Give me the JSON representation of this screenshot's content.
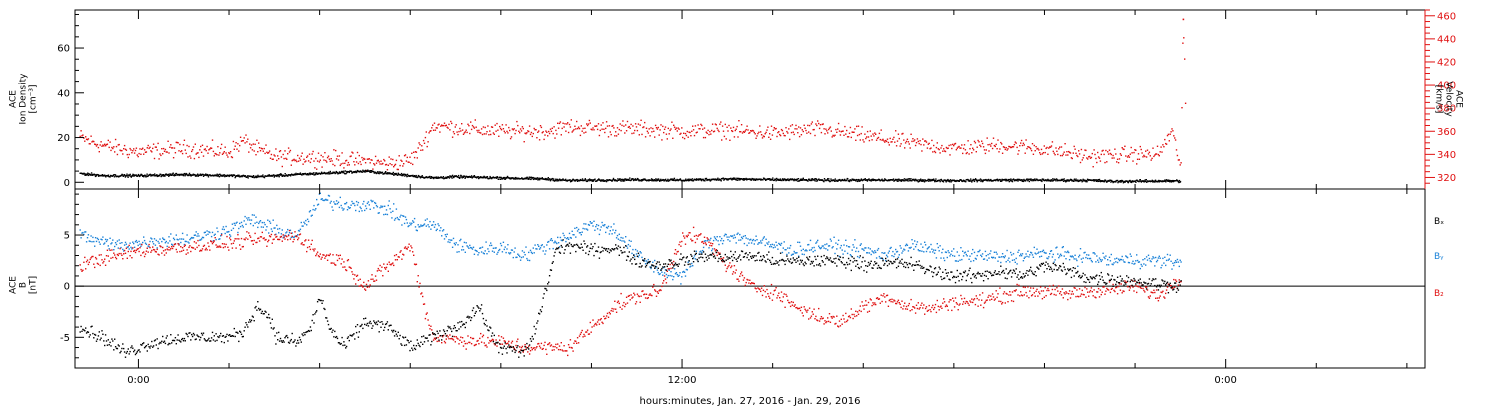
{
  "xaxis": {
    "label": "hours:minutes, Jan. 27, 2016 - Jan. 29, 2016",
    "range_hours": [
      -1.4,
      28.4
    ],
    "major_ticks": [
      {
        "hour": 0,
        "label": "0:00"
      },
      {
        "hour": 12,
        "label": "12:00"
      },
      {
        "hour": 24,
        "label": "0:00"
      }
    ]
  },
  "colors": {
    "density": "#000000",
    "velocity": "#e01010",
    "bx": "#000000",
    "by": "#1a82d8",
    "bz": "#e01010"
  },
  "chart_data": [
    {
      "type": "scatter",
      "panel": "top",
      "ylabel_left": [
        "ACE",
        "Ion Density",
        "[cm⁻³]"
      ],
      "ylabel_right": [
        "ACE",
        "Velocity",
        "[km/s]"
      ],
      "left_axis": {
        "range": [
          -3,
          77
        ],
        "ticks": [
          0,
          20,
          40,
          60
        ],
        "tick_labels": [
          "0",
          "20",
          "40",
          "60"
        ]
      },
      "right_axis": {
        "range": [
          310,
          465
        ],
        "ticks": [
          320,
          340,
          360,
          380,
          400,
          420,
          440,
          460
        ],
        "tick_labels": [
          "320",
          "340",
          "360",
          "380",
          "400",
          "420",
          "440",
          "460"
        ]
      },
      "series": [
        {
          "key": "density",
          "axis": "left",
          "points": [
            [
              -1.3,
              4
            ],
            [
              -0.8,
              3
            ],
            [
              0,
              3
            ],
            [
              1,
              3.5
            ],
            [
              2,
              3
            ],
            [
              2.5,
              2.5
            ],
            [
              3,
              3
            ],
            [
              4,
              4
            ],
            [
              5,
              5
            ],
            [
              5.5,
              4
            ],
            [
              6,
              3
            ],
            [
              6.5,
              2
            ],
            [
              7,
              2.5
            ],
            [
              8,
              2
            ],
            [
              9,
              1.5
            ],
            [
              9.5,
              0.8
            ],
            [
              10,
              1
            ],
            [
              11,
              1.2
            ],
            [
              12,
              1
            ],
            [
              13,
              1.5
            ],
            [
              14,
              1.2
            ],
            [
              15,
              1
            ],
            [
              16,
              1
            ],
            [
              17,
              1
            ],
            [
              18,
              0.8
            ],
            [
              19,
              1
            ],
            [
              20,
              1
            ],
            [
              21,
              0.9
            ],
            [
              21.5,
              0.4
            ],
            [
              22,
              0.5
            ],
            [
              22.5,
              0.6
            ],
            [
              23,
              0.6
            ]
          ]
        },
        {
          "key": "velocity",
          "axis": "right",
          "points": [
            [
              -1.3,
              355
            ],
            [
              -1,
              350
            ],
            [
              -0.5,
              345
            ],
            [
              0,
              342
            ],
            [
              1,
              345
            ],
            [
              2,
              342
            ],
            [
              2.3,
              352
            ],
            [
              2.6,
              344
            ],
            [
              3,
              338
            ],
            [
              4,
              337
            ],
            [
              5,
              334
            ],
            [
              5.5,
              332
            ],
            [
              6,
              335
            ],
            [
              6.2,
              345
            ],
            [
              6.5,
              365
            ],
            [
              7,
              363
            ],
            [
              8,
              360
            ],
            [
              9,
              360
            ],
            [
              9.5,
              364
            ],
            [
              10,
              363
            ],
            [
              11,
              362
            ],
            [
              12,
              360
            ],
            [
              13,
              361
            ],
            [
              14,
              358
            ],
            [
              15,
              362
            ],
            [
              16,
              356
            ],
            [
              17,
              350
            ],
            [
              18,
              345
            ],
            [
              19,
              348
            ],
            [
              20,
              345
            ],
            [
              21,
              338
            ],
            [
              22,
              340
            ],
            [
              22.5,
              340
            ],
            [
              22.8,
              360
            ],
            [
              23,
              330
            ],
            [
              23.05,
              457
            ],
            [
              23.1,
              385
            ]
          ]
        }
      ]
    },
    {
      "type": "scatter",
      "panel": "bottom",
      "ylabel_left": [
        "ACE",
        "B",
        "[nT]"
      ],
      "axis": {
        "range": [
          -8,
          9.5
        ],
        "ticks": [
          -5,
          0,
          5
        ],
        "tick_labels": [
          "-5",
          "0",
          "5"
        ]
      },
      "legend": [
        "Bₓ",
        "Bᵧ",
        "B₂"
      ],
      "series": [
        {
          "key": "bx",
          "name": "Bₓ",
          "points": [
            [
              -1.3,
              -4
            ],
            [
              -0.8,
              -5
            ],
            [
              -0.3,
              -6.5
            ],
            [
              0.3,
              -5.5
            ],
            [
              1,
              -5
            ],
            [
              2,
              -5
            ],
            [
              2.3,
              -4.5
            ],
            [
              2.6,
              -2
            ],
            [
              2.9,
              -3
            ],
            [
              3,
              -5
            ],
            [
              3.5,
              -5.5
            ],
            [
              3.8,
              -4
            ],
            [
              4,
              -1
            ],
            [
              4.2,
              -4
            ],
            [
              4.5,
              -6
            ],
            [
              5,
              -3.5
            ],
            [
              5.5,
              -4
            ],
            [
              6,
              -6
            ],
            [
              6.5,
              -5
            ],
            [
              7,
              -4
            ],
            [
              7.3,
              -3
            ],
            [
              7.5,
              -2
            ],
            [
              7.8,
              -5
            ],
            [
              8,
              -6
            ],
            [
              8.5,
              -6.5
            ],
            [
              8.7,
              -5
            ],
            [
              9,
              0
            ],
            [
              9.2,
              3.5
            ],
            [
              9.5,
              4
            ],
            [
              10,
              3.5
            ],
            [
              10.5,
              3.8
            ],
            [
              11,
              2.5
            ],
            [
              11.5,
              2
            ],
            [
              12,
              2.5
            ],
            [
              12.5,
              3
            ],
            [
              13,
              2.8
            ],
            [
              13.5,
              3
            ],
            [
              14,
              2.5
            ],
            [
              14.5,
              2.4
            ],
            [
              15,
              2.5
            ],
            [
              15.5,
              2.5
            ],
            [
              16,
              2.2
            ],
            [
              16.5,
              2.2
            ],
            [
              17,
              2.2
            ],
            [
              17.5,
              1.5
            ],
            [
              18,
              1
            ],
            [
              18.5,
              1
            ],
            [
              19,
              1.5
            ],
            [
              19.5,
              1
            ],
            [
              20,
              2
            ],
            [
              20.5,
              1.5
            ],
            [
              21,
              0.8
            ],
            [
              21.5,
              0.7
            ],
            [
              22,
              0.5
            ],
            [
              22.5,
              0.2
            ],
            [
              23,
              0.1
            ]
          ]
        },
        {
          "key": "by",
          "name": "Bᵧ",
          "points": [
            [
              -1.3,
              5
            ],
            [
              -1,
              4.5
            ],
            [
              -0.5,
              4
            ],
            [
              0,
              4.2
            ],
            [
              0.5,
              4.5
            ],
            [
              1,
              4.6
            ],
            [
              1.5,
              5
            ],
            [
              2,
              5.5
            ],
            [
              2.5,
              6.5
            ],
            [
              3,
              5.5
            ],
            [
              3.5,
              5
            ],
            [
              4,
              8.5
            ],
            [
              4.5,
              8
            ],
            [
              5,
              8
            ],
            [
              5.5,
              7.5
            ],
            [
              6,
              6
            ],
            [
              6.5,
              6
            ],
            [
              7,
              4
            ],
            [
              7.5,
              3.5
            ],
            [
              8,
              3.8
            ],
            [
              8.5,
              3
            ],
            [
              9,
              4
            ],
            [
              9.5,
              5
            ],
            [
              10,
              6
            ],
            [
              10.5,
              5.5
            ],
            [
              11,
              3
            ],
            [
              11.5,
              1.5
            ],
            [
              12,
              1
            ],
            [
              12.5,
              4
            ],
            [
              13,
              5
            ],
            [
              13.5,
              4.5
            ],
            [
              14,
              4
            ],
            [
              14.5,
              3.5
            ],
            [
              15,
              4
            ],
            [
              15.5,
              3.8
            ],
            [
              16,
              3.5
            ],
            [
              16.5,
              3
            ],
            [
              17,
              4
            ],
            [
              17.5,
              3.5
            ],
            [
              18,
              3
            ],
            [
              18.5,
              3
            ],
            [
              19,
              2.8
            ],
            [
              19.5,
              3
            ],
            [
              20,
              3.2
            ],
            [
              20.5,
              3
            ],
            [
              21,
              2.8
            ],
            [
              21.5,
              2.5
            ],
            [
              22,
              2.6
            ],
            [
              22.5,
              2.5
            ],
            [
              23,
              2.3
            ]
          ]
        },
        {
          "key": "bz",
          "name": "B₂",
          "points": [
            [
              -1.3,
              2
            ],
            [
              -1,
              2.5
            ],
            [
              -0.5,
              3
            ],
            [
              0,
              3.5
            ],
            [
              0.5,
              3.6
            ],
            [
              1,
              3.8
            ],
            [
              1.5,
              4
            ],
            [
              2,
              4.2
            ],
            [
              2.5,
              4.5
            ],
            [
              3,
              4.6
            ],
            [
              3.5,
              5
            ],
            [
              4,
              3
            ],
            [
              4.5,
              2.5
            ],
            [
              5,
              0
            ],
            [
              5.5,
              2
            ],
            [
              6,
              4
            ],
            [
              6.3,
              -2
            ],
            [
              6.5,
              -5
            ],
            [
              7,
              -5.2
            ],
            [
              8,
              -5.5
            ],
            [
              8.5,
              -6
            ],
            [
              9,
              -6
            ],
            [
              9.5,
              -6
            ],
            [
              10,
              -4
            ],
            [
              10.5,
              -2
            ],
            [
              11,
              -1
            ],
            [
              11.5,
              -0.5
            ],
            [
              12,
              5
            ],
            [
              12.5,
              4.5
            ],
            [
              13,
              2
            ],
            [
              13.5,
              0
            ],
            [
              14,
              -0.5
            ],
            [
              14.5,
              -2
            ],
            [
              15,
              -3
            ],
            [
              15.5,
              -3.5
            ],
            [
              16,
              -2
            ],
            [
              16.5,
              -1
            ],
            [
              17,
              -2
            ],
            [
              17.5,
              -2.2
            ],
            [
              18,
              -1.5
            ],
            [
              18.5,
              -1.5
            ],
            [
              19,
              -1
            ],
            [
              19.5,
              -0.5
            ],
            [
              20,
              -0.5
            ],
            [
              20.5,
              -0.8
            ],
            [
              21,
              -0.5
            ],
            [
              21.5,
              -0.3
            ],
            [
              22,
              0
            ],
            [
              22.5,
              -1
            ],
            [
              23,
              1
            ]
          ]
        }
      ]
    }
  ]
}
